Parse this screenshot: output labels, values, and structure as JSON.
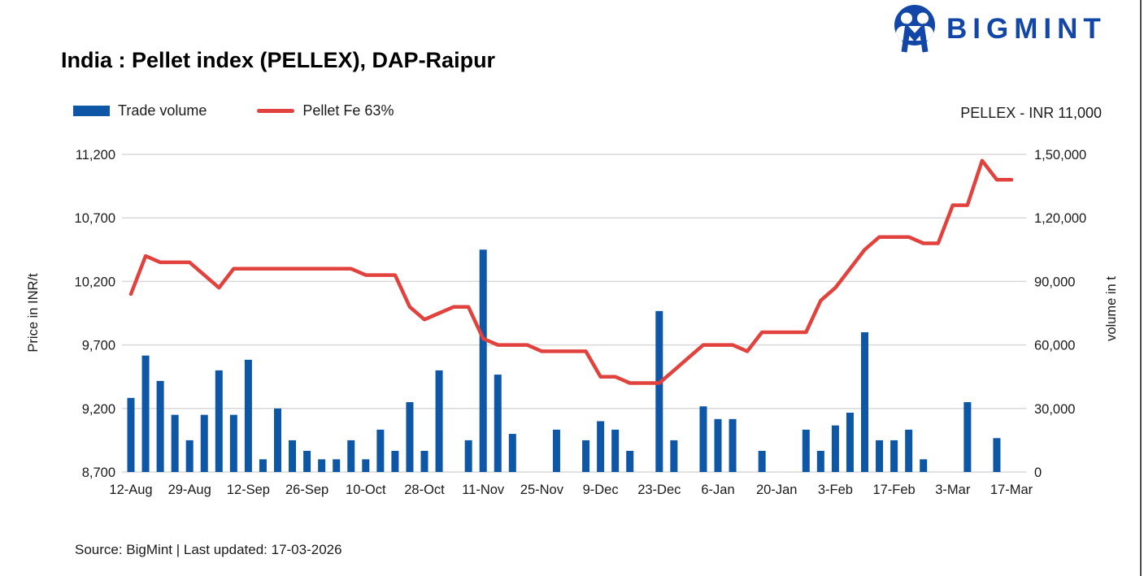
{
  "brand": {
    "name": "BIGMINT"
  },
  "title": "India : Pellet index (PELLEX), DAP-Raipur",
  "legend": {
    "trade_volume": "Trade volume",
    "pellet_fe": "Pellet Fe 63%"
  },
  "annotation": "PELLEX - INR 11,000",
  "source_note": "Source: BigMint | Last updated: 17-03-2026",
  "colors": {
    "bar_blue": "#0E56A6",
    "line_red": "#E2423D",
    "logo_blue": "#1247A8",
    "gridline": "#D9D9D9",
    "text": "#1a1a1a"
  },
  "chart_data": {
    "type": "bar+line",
    "slots": 61,
    "x_label_slot_step": 4,
    "x_tick_labels": [
      "12-Aug",
      "29-Aug",
      "12-Sep",
      "26-Sep",
      "10-Oct",
      "28-Oct",
      "11-Nov",
      "25-Nov",
      "9-Dec",
      "23-Dec",
      "6-Jan",
      "20-Jan",
      "3-Feb",
      "17-Feb",
      "3-Mar",
      "17-Mar"
    ],
    "grid": true,
    "legend_position": "top-left",
    "left_axis": {
      "title": "Price in INR/t",
      "min": 8700,
      "max": 11200,
      "tick_labels": [
        "11,200",
        "10,700",
        "10,200",
        "9,700",
        "9,200",
        "8,700"
      ]
    },
    "right_axis": {
      "title": "volume in t",
      "min": 0,
      "max": 150000,
      "tick_labels": [
        "1,50,000",
        "1,20,000",
        "90,000",
        "60,000",
        "30,000",
        "0"
      ]
    },
    "series": [
      {
        "name": "Trade volume",
        "type": "bar",
        "axis": "right",
        "color": "#0E56A6",
        "values": [
          35000,
          55000,
          43000,
          27000,
          15000,
          27000,
          48000,
          27000,
          53000,
          6000,
          30000,
          15000,
          10000,
          6000,
          6000,
          15000,
          6000,
          20000,
          10000,
          33000,
          10000,
          48000,
          0,
          15000,
          105000,
          46000,
          18000,
          0,
          0,
          20000,
          0,
          15000,
          24000,
          20000,
          10000,
          0,
          76000,
          15000,
          0,
          31000,
          25000,
          25000,
          0,
          10000,
          0,
          0,
          20000,
          10000,
          22000,
          28000,
          66000,
          15000,
          15000,
          20000,
          6000,
          0,
          0,
          33000,
          0,
          16000,
          0
        ]
      },
      {
        "name": "Pellet Fe 63%",
        "type": "line",
        "axis": "left",
        "color": "#E2423D",
        "values": [
          10100,
          10400,
          10350,
          10350,
          10350,
          10250,
          10150,
          10300,
          10300,
          10300,
          10300,
          10300,
          10300,
          10300,
          10300,
          10300,
          10250,
          10250,
          10250,
          10000,
          9900,
          9950,
          10000,
          10000,
          9750,
          9700,
          9700,
          9700,
          9650,
          9650,
          9650,
          9650,
          9450,
          9450,
          9400,
          9400,
          9400,
          9500,
          9600,
          9700,
          9700,
          9700,
          9650,
          9800,
          9800,
          9800,
          9800,
          10050,
          10150,
          10300,
          10450,
          10550,
          10550,
          10550,
          10500,
          10500,
          10800,
          10800,
          11150,
          11000,
          11000
        ]
      }
    ]
  }
}
